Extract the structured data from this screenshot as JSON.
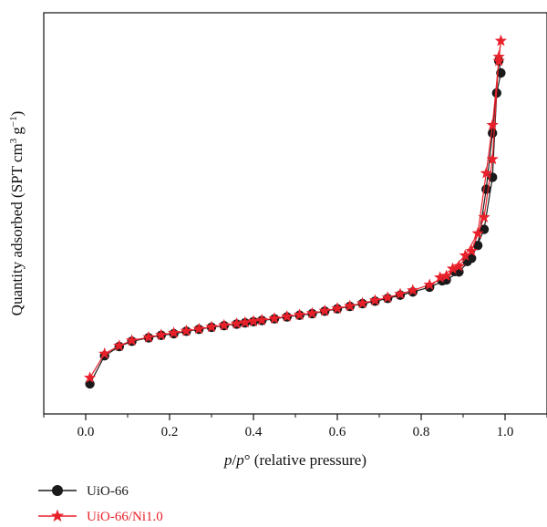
{
  "chart_data": {
    "type": "line",
    "xlabel": {
      "italic_p": "p",
      "slash": "/",
      "italic_p0": "p",
      "degree": "°",
      "rest": " (relative pressure)"
    },
    "ylabel": {
      "prefix": "Quantity adsorbed (SPT cm",
      "sup3": "3",
      "middle": " g",
      "sup_neg1": "−1",
      "suffix": ")"
    },
    "xlim": [
      -0.1,
      1.1
    ],
    "ylim": [
      0,
      100
    ],
    "xticks": [
      "0.0",
      "0.2",
      "0.4",
      "0.6",
      "0.8",
      "1.0"
    ],
    "legend_position": "bottom-left",
    "grid": false,
    "series": [
      {
        "name": "UiO-66",
        "color": "#1a1a1a",
        "marker": "circle",
        "points": [
          [
            0.01,
            7.5
          ],
          [
            0.045,
            14.5
          ],
          [
            0.08,
            16.8
          ],
          [
            0.11,
            18.1
          ],
          [
            0.15,
            19.0
          ],
          [
            0.18,
            19.6
          ],
          [
            0.21,
            20.0
          ],
          [
            0.24,
            20.6
          ],
          [
            0.27,
            21.1
          ],
          [
            0.3,
            21.6
          ],
          [
            0.33,
            22.0
          ],
          [
            0.36,
            22.4
          ],
          [
            0.38,
            22.7
          ],
          [
            0.4,
            23.0
          ],
          [
            0.42,
            23.3
          ],
          [
            0.45,
            23.7
          ],
          [
            0.48,
            24.2
          ],
          [
            0.51,
            24.6
          ],
          [
            0.54,
            25.0
          ],
          [
            0.57,
            25.6
          ],
          [
            0.6,
            26.2
          ],
          [
            0.63,
            26.8
          ],
          [
            0.66,
            27.5
          ],
          [
            0.69,
            28.1
          ],
          [
            0.72,
            28.8
          ],
          [
            0.75,
            29.6
          ],
          [
            0.78,
            30.4
          ],
          [
            0.82,
            31.6
          ],
          [
            0.86,
            33.4
          ],
          [
            0.89,
            35.4
          ],
          [
            0.92,
            38.8
          ],
          [
            0.95,
            46.0
          ],
          [
            0.97,
            59.0
          ],
          [
            0.98,
            80.0
          ],
          [
            0.99,
            85.0
          ],
          [
            0.985,
            88.0
          ],
          [
            0.97,
            70.0
          ],
          [
            0.955,
            56.0
          ],
          [
            0.935,
            42.0
          ],
          [
            0.91,
            38.0
          ],
          [
            0.88,
            35.5
          ],
          [
            0.85,
            33.2
          ]
        ]
      },
      {
        "name": "UiO-66/Ni1.0",
        "color": "#e8202a",
        "marker": "star",
        "points": [
          [
            0.01,
            9.0
          ],
          [
            0.045,
            15.0
          ],
          [
            0.08,
            17.0
          ],
          [
            0.11,
            18.3
          ],
          [
            0.15,
            19.1
          ],
          [
            0.18,
            19.7
          ],
          [
            0.21,
            20.2
          ],
          [
            0.24,
            20.7
          ],
          [
            0.27,
            21.2
          ],
          [
            0.3,
            21.7
          ],
          [
            0.33,
            22.1
          ],
          [
            0.36,
            22.5
          ],
          [
            0.38,
            22.8
          ],
          [
            0.4,
            23.1
          ],
          [
            0.42,
            23.4
          ],
          [
            0.45,
            23.8
          ],
          [
            0.48,
            24.3
          ],
          [
            0.51,
            24.7
          ],
          [
            0.54,
            25.1
          ],
          [
            0.57,
            25.7
          ],
          [
            0.6,
            26.3
          ],
          [
            0.63,
            26.9
          ],
          [
            0.66,
            27.6
          ],
          [
            0.69,
            28.3
          ],
          [
            0.72,
            29.0
          ],
          [
            0.75,
            29.9
          ],
          [
            0.78,
            30.8
          ],
          [
            0.82,
            32.2
          ],
          [
            0.86,
            34.4
          ],
          [
            0.89,
            36.8
          ],
          [
            0.92,
            40.6
          ],
          [
            0.95,
            49.0
          ],
          [
            0.97,
            63.5
          ],
          [
            0.985,
            89.0
          ],
          [
            0.99,
            93.0
          ],
          [
            0.985,
            88.0
          ],
          [
            0.97,
            72.0
          ],
          [
            0.955,
            60.0
          ],
          [
            0.935,
            45.0
          ],
          [
            0.905,
            39.5
          ],
          [
            0.875,
            36.2
          ],
          [
            0.845,
            34.0
          ]
        ]
      }
    ]
  },
  "legend": [
    {
      "label": "UiO-66",
      "color": "#1a1a1a",
      "marker": "circle"
    },
    {
      "label": "UiO-66/Ni1.0",
      "color": "#e8202a",
      "marker": "star"
    }
  ]
}
